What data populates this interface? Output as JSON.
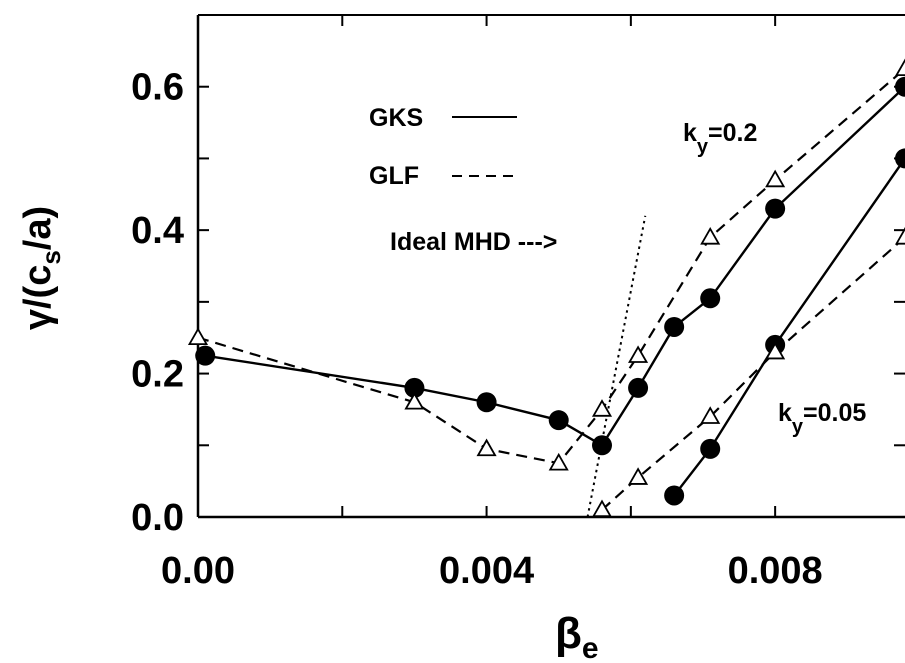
{
  "chart_data": {
    "type": "line",
    "xlabel": {
      "base": "β",
      "sub": "e"
    },
    "ylabel": {
      "pre": "γ/(c",
      "sub": "s",
      "post": "/a)"
    },
    "xlim": [
      0.0,
      0.0098
    ],
    "ylim": [
      0.0,
      0.7
    ],
    "x_tick_labels": [
      {
        "value": 0.0,
        "label": "0.00"
      },
      {
        "value": 0.004,
        "label": "0.004"
      },
      {
        "value": 0.008,
        "label": "0.008"
      }
    ],
    "y_tick_labels": [
      {
        "value": 0.0,
        "label": "0.0"
      },
      {
        "value": 0.2,
        "label": "0.2"
      },
      {
        "value": 0.4,
        "label": "0.4"
      },
      {
        "value": 0.6,
        "label": "0.6"
      }
    ],
    "x_minor_ticks": [
      0.002,
      0.006
    ],
    "y_minor_ticks": [
      0.1,
      0.3,
      0.5
    ],
    "grid": false,
    "legend": {
      "placement": "upper-left",
      "entries": [
        {
          "label": "GKS",
          "style": "solid"
        },
        {
          "label": "GLF",
          "style": "dashed"
        }
      ]
    },
    "annotations": {
      "ideal_mhd": "Ideal  MHD --->",
      "ky_high": {
        "base": "k",
        "sub": "y",
        "rest": "=0.2"
      },
      "ky_low": {
        "base": "k",
        "sub": "y",
        "rest": "=0.05"
      }
    },
    "series": [
      {
        "group": "ky=0.2",
        "model": "GKS",
        "style": "solid",
        "marker": "filled-circle",
        "points": [
          [
            0.0001,
            0.225
          ],
          [
            0.003,
            0.18
          ],
          [
            0.004,
            0.16
          ],
          [
            0.005,
            0.135
          ],
          [
            0.0056,
            0.1
          ],
          [
            0.0061,
            0.18
          ],
          [
            0.0066,
            0.265
          ],
          [
            0.0071,
            0.305
          ],
          [
            0.008,
            0.43
          ],
          [
            0.0098,
            0.6
          ]
        ]
      },
      {
        "group": "ky=0.2",
        "model": "GLF",
        "style": "dashed",
        "marker": "open-triangle",
        "points": [
          [
            0.0,
            0.25
          ],
          [
            0.003,
            0.16
          ],
          [
            0.004,
            0.095
          ],
          [
            0.005,
            0.075
          ],
          [
            0.0056,
            0.15
          ],
          [
            0.0061,
            0.225
          ],
          [
            0.0071,
            0.39
          ],
          [
            0.008,
            0.47
          ],
          [
            0.0098,
            0.625
          ]
        ]
      },
      {
        "group": "ky=0.05",
        "model": "GKS",
        "style": "solid",
        "marker": "filled-circle",
        "points": [
          [
            0.0066,
            0.03
          ],
          [
            0.0071,
            0.095
          ],
          [
            0.008,
            0.24
          ],
          [
            0.0098,
            0.5
          ]
        ]
      },
      {
        "group": "ky=0.05",
        "model": "GLF",
        "style": "dashed",
        "marker": "open-triangle",
        "points": [
          [
            0.0056,
            0.01
          ],
          [
            0.0061,
            0.055
          ],
          [
            0.0071,
            0.14
          ],
          [
            0.008,
            0.23
          ],
          [
            0.0098,
            0.39
          ]
        ]
      },
      {
        "group": "ideal-mhd",
        "model": "Ideal MHD",
        "style": "dotted",
        "marker": "none",
        "points": [
          [
            0.0054,
            0.0
          ],
          [
            0.0062,
            0.42
          ]
        ]
      }
    ]
  }
}
